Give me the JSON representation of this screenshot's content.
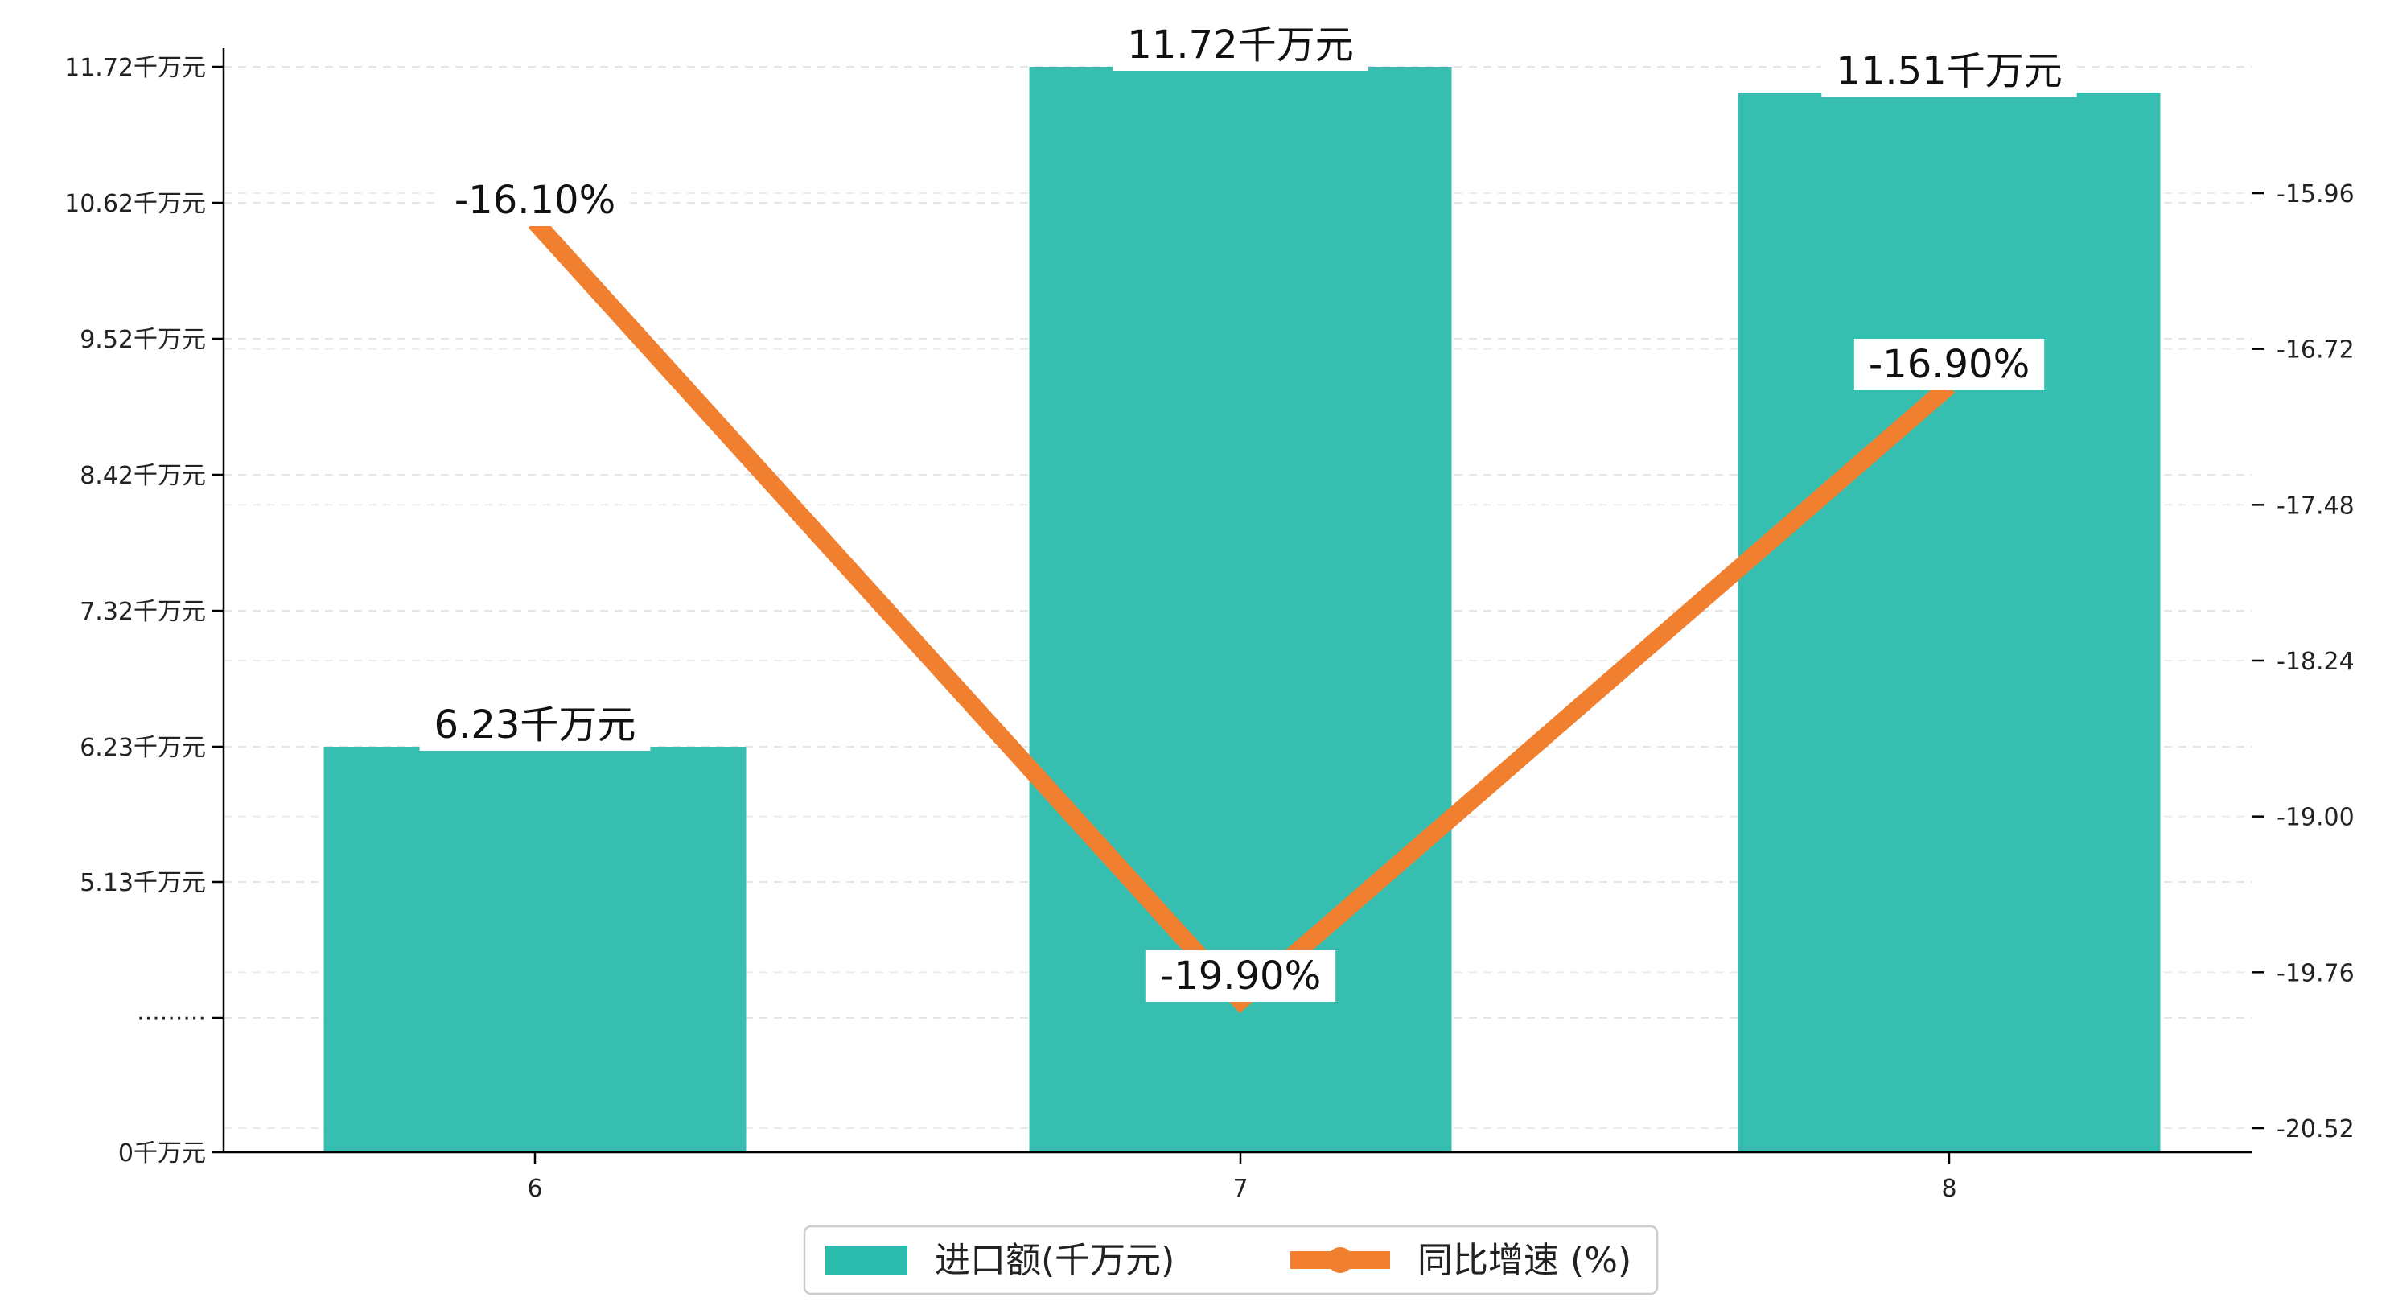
{
  "chart_data": {
    "type": "bar",
    "categories": [
      "6",
      "7",
      "8"
    ],
    "series": [
      {
        "name": "进口额(千万元)",
        "type": "bar",
        "axis": "left",
        "values": [
          6.23,
          11.72,
          11.51
        ],
        "labels": [
          "6.23千万元",
          "11.72千万元",
          "11.51千万元"
        ],
        "color": "#2bbcad"
      },
      {
        "name": "同比增速 (%)",
        "type": "line",
        "axis": "right",
        "values": [
          -16.1,
          -19.9,
          -16.9
        ],
        "labels": [
          "-16.10%",
          "-19.90%",
          "-16.90%"
        ],
        "color": "#f08030"
      }
    ],
    "y_left": {
      "ticks": [
        0,
        3.5,
        5.13,
        6.23,
        7.32,
        8.42,
        9.52,
        10.62,
        11.72
      ],
      "tick_labels": [
        "0千万元",
        "·········",
        "5.13千万元",
        "6.23千万元",
        "7.32千万元",
        "8.42千万元",
        "9.52千万元",
        "10.62千万元",
        "11.72千万元"
      ],
      "broken_axis": true
    },
    "y_right": {
      "ticks": [
        -20.52,
        -19.76,
        -19.0,
        -18.24,
        -17.48,
        -16.72,
        -15.96
      ],
      "tick_labels": [
        "-20.52",
        "-19.76",
        "-19.00",
        "-18.24",
        "-17.48",
        "-16.72",
        "-15.96"
      ]
    },
    "grid": true,
    "legend_position": "bottom-center"
  }
}
